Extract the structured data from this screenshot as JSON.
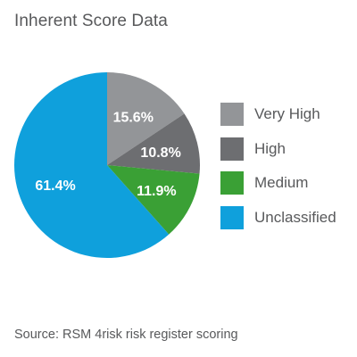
{
  "title": "Inherent Score Data",
  "source": "Source: RSM 4risk risk register scoring",
  "chart_data": {
    "type": "pie",
    "title": "Inherent Score Data",
    "labels": [
      "Very High",
      "High",
      "Medium",
      "Unclassified"
    ],
    "values": [
      15.6,
      10.8,
      11.9,
      61.4
    ],
    "value_labels": [
      "15.6%",
      "10.8%",
      "11.9%",
      "61.4%"
    ],
    "colors": [
      "#939598",
      "#6d6e71",
      "#3aa035",
      "#0fa0dc"
    ],
    "start": "12 o'clock",
    "direction": "clockwise",
    "legend_placement": "right"
  },
  "legend": [
    {
      "label": "Very High",
      "color": "#939598"
    },
    {
      "label": "High",
      "color": "#6d6e71"
    },
    {
      "label": "Medium",
      "color": "#3aa035"
    },
    {
      "label": "Unclassified",
      "color": "#0fa0dc"
    }
  ]
}
